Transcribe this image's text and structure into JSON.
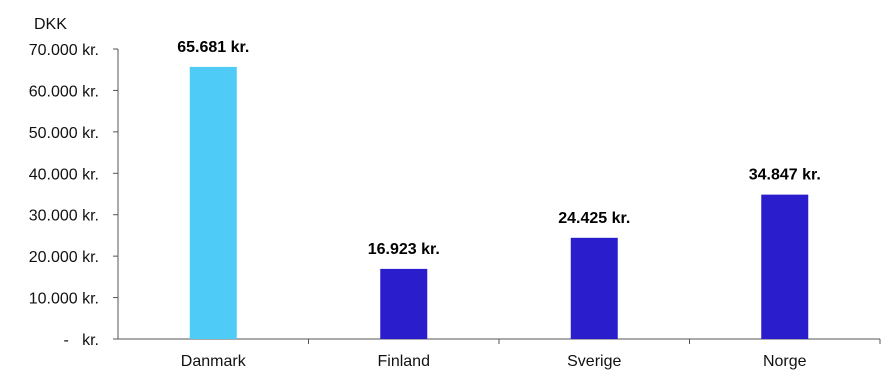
{
  "chart_data": {
    "type": "bar",
    "unit_label": "DKK",
    "categories": [
      "Danmark",
      "Finland",
      "Sverige",
      "Norge"
    ],
    "values": [
      65681,
      16923,
      24425,
      34847
    ],
    "value_labels": [
      "65.681 kr.",
      "16.923 kr.",
      "24.425 kr.",
      "34.847 kr."
    ],
    "bar_colors": [
      "#4FCBF7",
      "#2A1ECC",
      "#2A1ECC",
      "#2A1ECC"
    ],
    "ylim": [
      0,
      70000
    ],
    "yticks": [
      0,
      10000,
      20000,
      30000,
      40000,
      50000,
      60000,
      70000
    ],
    "ytick_labels": [
      "-   kr.",
      "10.000 kr.",
      "20.000 kr.",
      "30.000 kr.",
      "40.000 kr.",
      "50.000 kr.",
      "60.000 kr.",
      "70.000 kr."
    ],
    "grid": false,
    "legend": "none"
  }
}
